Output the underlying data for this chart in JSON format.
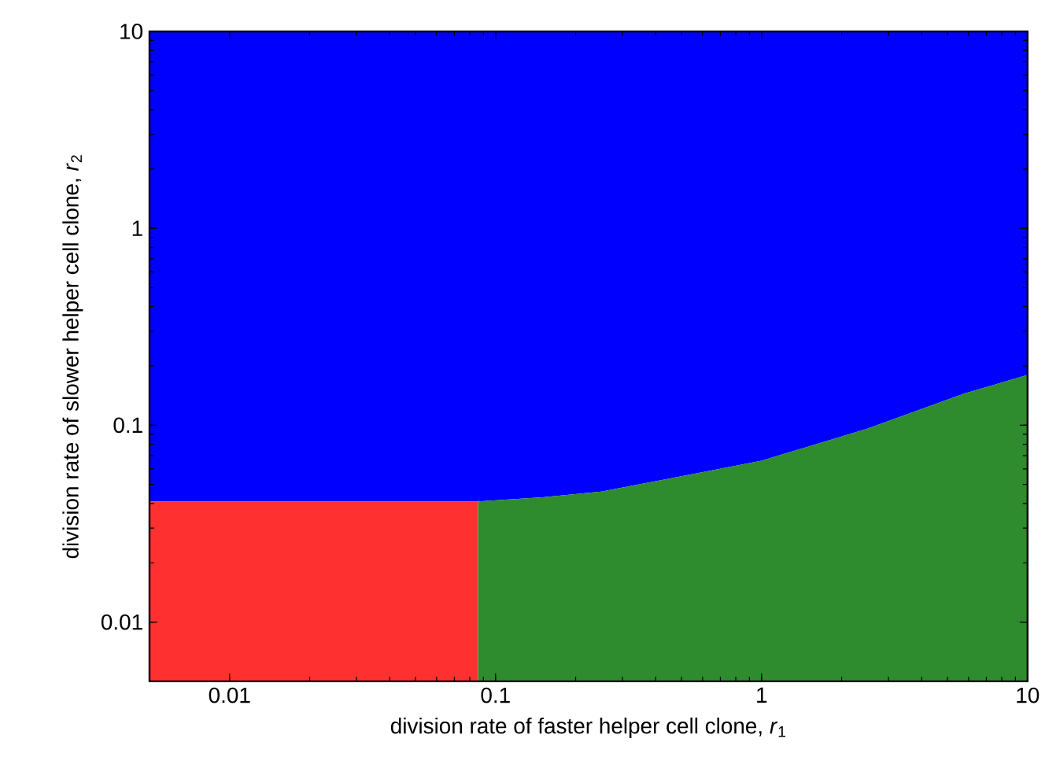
{
  "chart_data": {
    "type": "area",
    "xlabel": "division rate of faster helper cell clone, *r*$_{1}$",
    "ylabel": "division rate of slower helper cell clone, *r*$_{2}$",
    "log": "xy",
    "xlim": [
      0.005,
      10
    ],
    "ylim": [
      0.005,
      10
    ],
    "xticks": [
      0.01,
      0.1,
      1,
      10
    ],
    "yticks": [
      0.01,
      0.1,
      1,
      10
    ],
    "series": [
      {
        "color": "#0000ff",
        "x": [
          0.005,
          0.086,
          0.15,
          0.25,
          0.5,
          1,
          2.5,
          5.8,
          10
        ],
        "values": [
          null,
          null,
          null,
          null,
          null,
          null,
          null,
          null,
          null
        ],
        "lower": [
          0.041,
          0.041,
          0.043,
          0.046,
          0.055,
          0.066,
          0.096,
          0.145,
          0.18
        ],
        "upper": [
          10,
          10,
          10,
          10,
          10,
          10,
          10,
          10,
          10
        ]
      },
      {
        "color": "#ff3030",
        "x": [
          0.005,
          0.086
        ],
        "values": [
          0.041,
          0.041
        ]
      },
      {
        "color": "#2e8b2e",
        "x": [
          0.086,
          0.15,
          0.25,
          0.5,
          1,
          2.5,
          5.8,
          10
        ],
        "values": [
          0.041,
          0.043,
          0.046,
          0.055,
          0.066,
          0.096,
          0.145,
          0.18
        ]
      }
    ]
  }
}
